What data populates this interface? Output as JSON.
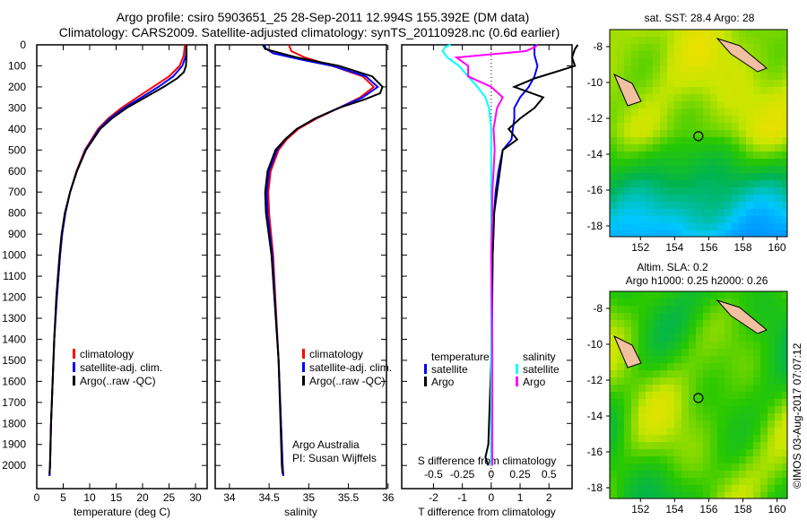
{
  "title_line1": "Argo profile: csiro 5903651_25 28-Sep-2011 12.994S 155.392E (DM data)",
  "title_line2": "Climatology: CARS2009. Satellite-adjusted climatology: synTS_20110928.nc (0.6d earlier)",
  "credit": "Argo Australia",
  "pi": "PI: Susan Wijffels",
  "stamp": "©IMOS 03-Aug-2017 07:07:12",
  "colors": {
    "clim": "#ff0000",
    "sat": "#0000ff",
    "argo": "#000000",
    "s_sat": "#00ffff",
    "s_argo": "#ff00ff"
  },
  "chart_data": [
    {
      "type": "line",
      "id": "temperature",
      "xlabel": "temperature (deg C)",
      "ylabel": "depth",
      "xlim": [
        0,
        32.2
      ],
      "ylim": [
        2110,
        0
      ],
      "xticks": [
        0,
        5,
        10,
        15,
        20,
        25,
        30
      ],
      "yticks": [
        0,
        100,
        200,
        300,
        400,
        500,
        600,
        700,
        800,
        900,
        1000,
        1100,
        1200,
        1300,
        1400,
        1500,
        1600,
        1700,
        1800,
        1900,
        2000
      ],
      "legend": [
        "climatology",
        "satellite-adj. clim.",
        "Argo(..raw -QC)"
      ],
      "legend_position": "lower-middle",
      "series": [
        {
          "name": "climatology",
          "color": "clim",
          "depth": [
            0,
            50,
            100,
            150,
            200,
            250,
            300,
            350,
            400,
            500,
            600,
            700,
            800,
            900,
            1000,
            1200,
            1400,
            1600,
            1800,
            2000,
            2050
          ],
          "values": [
            28,
            27.8,
            27,
            25,
            22,
            19,
            16,
            13.5,
            11.6,
            9.1,
            7.5,
            6.3,
            5.4,
            4.8,
            4.4,
            3.8,
            3.3,
            3.0,
            2.7,
            2.5,
            2.4
          ]
        },
        {
          "name": "satellite-adj. clim.",
          "color": "sat",
          "depth": [
            0,
            50,
            100,
            150,
            200,
            250,
            300,
            350,
            400,
            500,
            600,
            700,
            800,
            900,
            1000,
            1200,
            1400,
            1600,
            1800,
            2000,
            2050
          ],
          "values": [
            28.3,
            28.2,
            27.5,
            25.8,
            23,
            19.8,
            16.5,
            13.8,
            11.8,
            9.2,
            7.6,
            6.3,
            5.4,
            4.8,
            4.4,
            3.8,
            3.3,
            3.0,
            2.7,
            2.5,
            2.4
          ]
        },
        {
          "name": "Argo(..raw -QC)",
          "color": "argo",
          "depth": [
            0,
            50,
            100,
            130,
            160,
            200,
            250,
            300,
            350,
            400,
            500,
            600,
            700,
            800,
            900,
            1000,
            1200,
            1400,
            1600,
            1800,
            2000,
            2040
          ],
          "values": [
            28.3,
            28.3,
            28.2,
            27.8,
            26.5,
            24,
            20.5,
            17,
            14.2,
            12,
            9.3,
            7.6,
            6.3,
            5.3,
            4.7,
            4.3,
            3.7,
            3.3,
            3.0,
            2.7,
            2.5,
            2.4
          ]
        }
      ]
    },
    {
      "type": "line",
      "id": "salinity",
      "xlabel": "salinity",
      "xlim": [
        33.82,
        35.98
      ],
      "ylim": [
        2110,
        0
      ],
      "xticks": [
        34,
        34.5,
        35,
        35.5,
        36
      ],
      "legend": [
        "climatology",
        "satellite-adj. clim.",
        "Argo(..raw -QC)"
      ],
      "series": [
        {
          "name": "climatology",
          "color": "clim",
          "depth": [
            0,
            30,
            60,
            100,
            150,
            200,
            250,
            300,
            350,
            400,
            450,
            500,
            600,
            700,
            800,
            1000,
            1500,
            2000,
            2050
          ],
          "values": [
            34.75,
            34.78,
            34.95,
            35.3,
            35.68,
            35.82,
            35.65,
            35.38,
            35.1,
            34.87,
            34.72,
            34.62,
            34.52,
            34.49,
            34.5,
            34.55,
            34.62,
            34.67,
            34.68
          ]
        },
        {
          "name": "satellite-adj. clim.",
          "color": "sat",
          "depth": [
            0,
            15,
            40,
            70,
            100,
            150,
            200,
            250,
            300,
            350,
            400,
            450,
            500,
            600,
            700,
            800,
            1000,
            1500,
            2000,
            2050
          ],
          "values": [
            34.45,
            34.45,
            34.55,
            34.9,
            35.3,
            35.72,
            35.87,
            35.68,
            35.38,
            35.08,
            34.85,
            34.7,
            34.6,
            34.5,
            34.47,
            34.48,
            34.54,
            34.62,
            34.67,
            34.68
          ]
        },
        {
          "name": "Argo(..raw -QC)",
          "color": "argo",
          "depth": [
            0,
            20,
            60,
            100,
            150,
            200,
            230,
            260,
            300,
            350,
            400,
            450,
            500,
            600,
            700,
            800,
            1000,
            1500,
            2000,
            2040
          ],
          "values": [
            34.42,
            34.45,
            34.85,
            35.38,
            35.8,
            35.93,
            35.9,
            35.7,
            35.38,
            35.08,
            34.85,
            34.7,
            34.58,
            34.48,
            34.45,
            34.46,
            34.53,
            34.62,
            34.66,
            34.67
          ]
        }
      ],
      "annotations": [
        "Argo Australia",
        "PI: Susan Wijffels"
      ]
    },
    {
      "type": "line",
      "id": "differences",
      "xlabel": "T difference from climatology",
      "xlabel2": "S difference from climatology",
      "xlim": [
        -3.1,
        2.8
      ],
      "ylim": [
        2110,
        0
      ],
      "xticks": [
        -2,
        -1,
        0,
        1,
        2
      ],
      "sticks": [
        -0.5,
        -0.25,
        0,
        0.25,
        0.5
      ],
      "sticklabels": [
        "-0.5",
        "-0.25",
        "0",
        "0.25",
        "0.5"
      ],
      "s_scale": 4,
      "legend_titles": [
        "temperature",
        "salinity"
      ],
      "legend": [
        [
          "satellite",
          "Argo"
        ],
        [
          "satellite",
          "Argo"
        ]
      ],
      "series": [
        {
          "name": "temperature satellite",
          "color": "sat",
          "kind": "T",
          "depth": [
            0,
            50,
            100,
            150,
            200,
            250,
            300,
            350,
            400,
            450,
            500,
            600,
            700,
            800,
            900,
            1000,
            1500,
            2000
          ],
          "values": [
            1.5,
            1.5,
            1.6,
            1.5,
            1.3,
            1.0,
            0.8,
            0.8,
            0.75,
            0.7,
            0.4,
            0.25,
            0.15,
            0.1,
            0.08,
            0.05,
            0.02,
            0.0
          ]
        },
        {
          "name": "temperature Argo",
          "color": "argo",
          "kind": "T",
          "depth": [
            0,
            20,
            60,
            100,
            130,
            160,
            200,
            250,
            300,
            350,
            400,
            450,
            500,
            600,
            700,
            800,
            1000,
            1500,
            1900,
            1960,
            2000
          ],
          "values": [
            3.0,
            2.9,
            2.8,
            2.9,
            2.2,
            1.5,
            0.8,
            1.8,
            1.5,
            1.0,
            0.6,
            0.9,
            0.4,
            0.3,
            0.2,
            0.1,
            0.05,
            0.0,
            -0.1,
            -0.2,
            -0.1
          ]
        },
        {
          "name": "salinity satellite",
          "color": "s_sat",
          "kind": "S",
          "depth": [
            0,
            10,
            30,
            60,
            100,
            150,
            200,
            250,
            300,
            400,
            500,
            600,
            800,
            1000,
            1500,
            2000
          ],
          "values": [
            -0.35,
            -0.4,
            -0.42,
            -0.38,
            -0.28,
            -0.2,
            -0.12,
            -0.05,
            -0.02,
            0.0,
            0.0,
            0.0,
            0.0,
            0.0,
            0.0,
            0.0
          ]
        },
        {
          "name": "salinity Argo",
          "color": "s_argo",
          "kind": "S",
          "depth": [
            0,
            10,
            30,
            60,
            100,
            150,
            200,
            250,
            300,
            400,
            500,
            600,
            700,
            800,
            1000,
            1500,
            2000
          ],
          "values": [
            0.4,
            0.38,
            0.3,
            -0.3,
            -0.2,
            -0.2,
            0.0,
            0.1,
            0.05,
            0.02,
            0.03,
            0.02,
            0.01,
            0.01,
            0.0,
            0.01,
            0.01
          ]
        }
      ]
    },
    {
      "type": "heatmap",
      "id": "sst-map",
      "title": "sat. SST: 28.4  Argo: 28",
      "xlim": [
        150.2,
        160.6
      ],
      "ylim": [
        -18.6,
        -7.05
      ],
      "xticks": [
        152,
        154,
        156,
        158,
        160
      ],
      "yticks": [
        -8,
        -10,
        -12,
        -14,
        -16,
        -18
      ],
      "marker": {
        "lon": 155.392,
        "lat": -12.994
      }
    },
    {
      "type": "heatmap",
      "id": "sla-map",
      "title": "Altim. SLA: 0.2",
      "subtitle": "Argo h1000: 0.25 h2000: 0.26",
      "xlim": [
        150.2,
        160.6
      ],
      "ylim": [
        -18.6,
        -7.05
      ],
      "xticks": [
        152,
        154,
        156,
        158,
        160
      ],
      "yticks": [
        -8,
        -10,
        -12,
        -14,
        -16,
        -18
      ],
      "marker": {
        "lon": 155.392,
        "lat": -12.994
      }
    }
  ]
}
